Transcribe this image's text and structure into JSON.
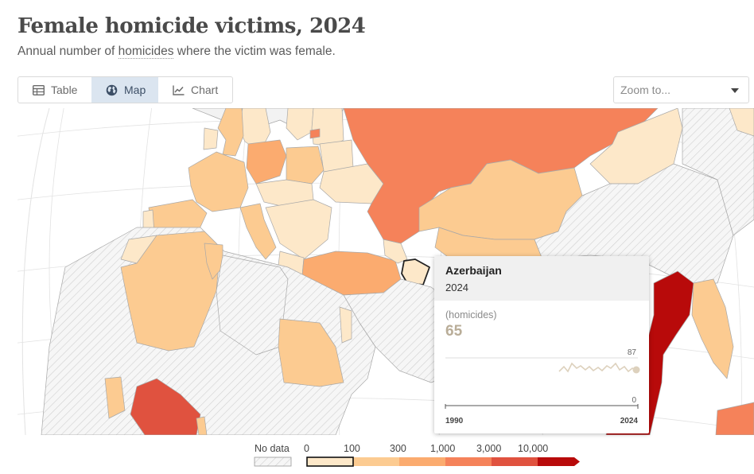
{
  "header": {
    "title": "Female homicide victims, 2024",
    "subtitle_before": "Annual number of ",
    "subtitle_link": "homicides",
    "subtitle_after": " where the victim was female."
  },
  "tabs": [
    {
      "label": "Table",
      "icon": "table-icon",
      "active": false
    },
    {
      "label": "Map",
      "icon": "globe-icon",
      "active": true
    },
    {
      "label": "Chart",
      "icon": "line-chart-icon",
      "active": false
    }
  ],
  "zoom": {
    "placeholder": "Zoom to..."
  },
  "tooltip": {
    "country": "Azerbaijan",
    "year": "2024",
    "unit": "(homicides)",
    "value": "65",
    "spark_max_label": "87",
    "spark_min_label": "0",
    "spark_start_label": "1990",
    "spark_end_label": "2024"
  },
  "legend": {
    "no_data_label": "No data",
    "ticks": [
      "0",
      "100",
      "300",
      "1,000",
      "3,000",
      "10,000"
    ],
    "colors": [
      "#fde8c9",
      "#fccb91",
      "#fbab6f",
      "#f5825a",
      "#e0523f",
      "#b80a0a"
    ],
    "highlighted_bin": 0
  },
  "map_colors": {
    "ocean": "#ffffff",
    "land_no_data": "#f2f2f2",
    "border": "#a8a8a8",
    "hatch": "#d2d2d2",
    "graticule": "#e0e0e0"
  },
  "map": {
    "regions": [
      {
        "name": "Russia",
        "bin": 3
      },
      {
        "name": "Kazakhstan",
        "bin": 1
      },
      {
        "name": "Turkey",
        "bin": 2
      },
      {
        "name": "Poland",
        "bin": 1
      },
      {
        "name": "Germany",
        "bin": 2
      },
      {
        "name": "France",
        "bin": 1
      },
      {
        "name": "Italy",
        "bin": 1
      },
      {
        "name": "Spain",
        "bin": 1
      },
      {
        "name": "United Kingdom",
        "bin": 1
      },
      {
        "name": "Algeria",
        "bin": 1
      },
      {
        "name": "Egypt",
        "bin": 1
      },
      {
        "name": "Azerbaijan",
        "bin": 0
      },
      {
        "name": "India",
        "bin": 5
      },
      {
        "name": "Nigeria",
        "bin": 4
      },
      {
        "name": "Myanmar",
        "bin": 1
      }
    ]
  }
}
